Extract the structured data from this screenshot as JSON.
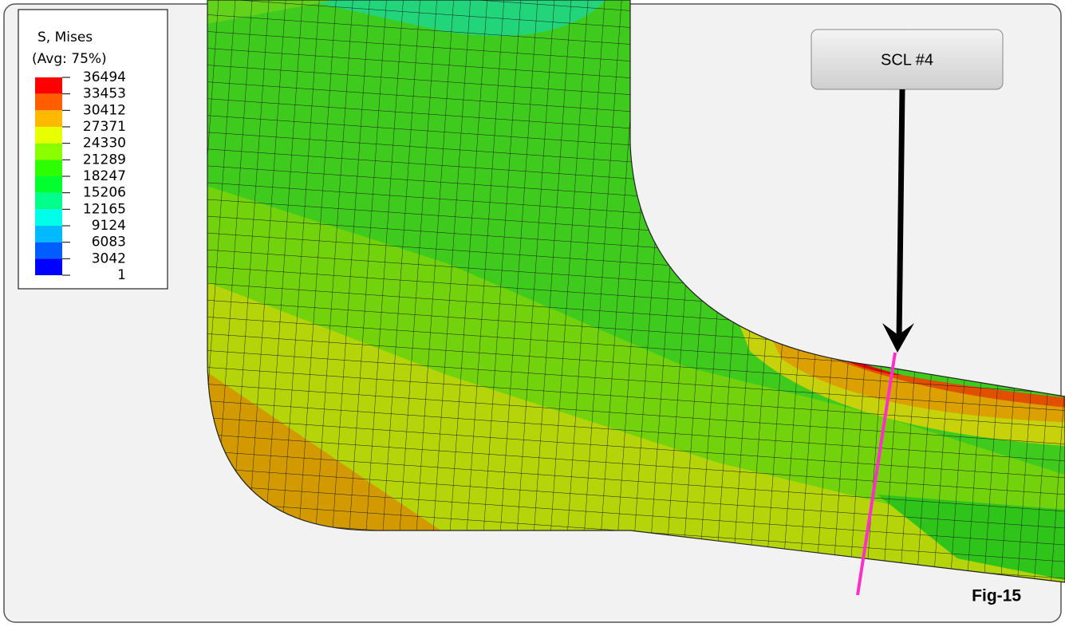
{
  "legend": {
    "title": "S, Mises",
    "subtitle": "(Avg: 75%)",
    "values": [
      36494,
      33453,
      30412,
      27371,
      24330,
      21289,
      18247,
      15206,
      12165,
      9124,
      6083,
      3042,
      1
    ],
    "colors": [
      "#ff0000",
      "#ff5d00",
      "#ffb900",
      "#e8ff00",
      "#8bff00",
      "#2eff00",
      "#00ff2e",
      "#00ff8b",
      "#00ffe8",
      "#00b9ff",
      "#005dff",
      "#0000ff"
    ]
  },
  "callout": {
    "label": "SCL #4"
  },
  "figure_label": "Fig-15"
}
